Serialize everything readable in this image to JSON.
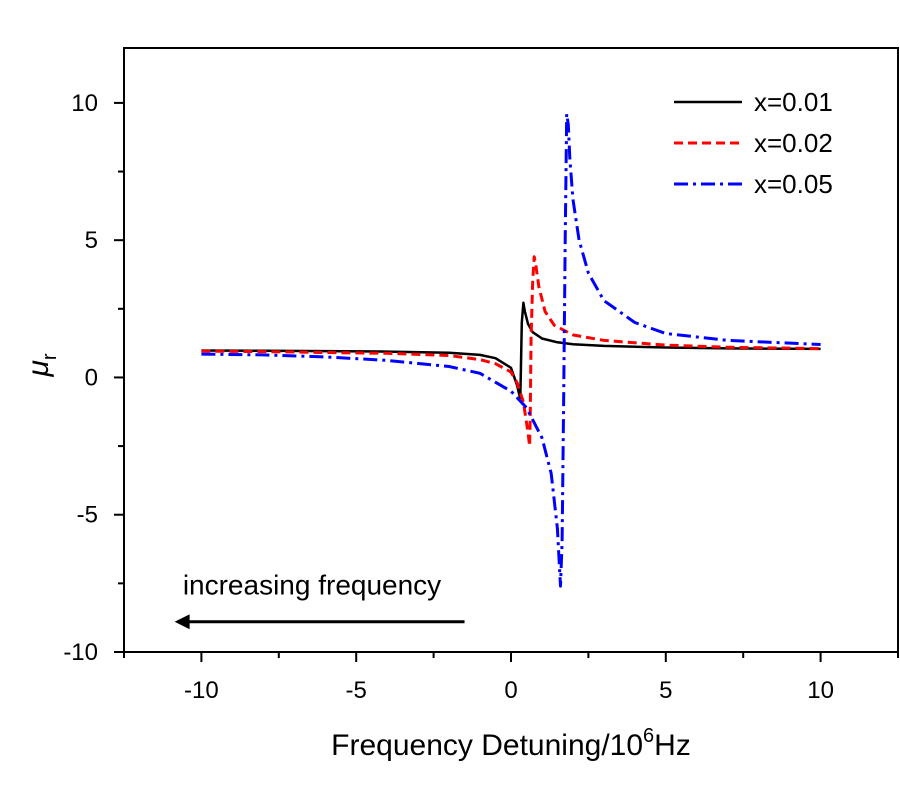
{
  "chart_data": {
    "type": "line",
    "title": "",
    "xlabel": "Frequency Detuning/10",
    "xlabel_sup": "6",
    "xlabel_unit": "Hz",
    "ylabel": "μ",
    "ylabel_sub": "r",
    "xlim": [
      -12.5,
      12.5
    ],
    "ylim": [
      -10,
      12
    ],
    "x_ticks": [
      -10,
      -5,
      0,
      5,
      10
    ],
    "x_tick_labels": [
      "-10",
      "-5",
      "0",
      "5",
      "10"
    ],
    "y_ticks": [
      -10,
      -5,
      0,
      5,
      10
    ],
    "y_tick_labels": [
      "-10",
      "-5",
      "0",
      "5",
      "10"
    ],
    "grid": false,
    "legend_position": "top-right",
    "series": [
      {
        "name": "x=0.01",
        "color": "#000000",
        "style": "solid",
        "x": [
          -10,
          -8,
          -6,
          -4,
          -2,
          -1,
          -0.5,
          0,
          0.2,
          0.28,
          0.3,
          0.32,
          0.35,
          0.4,
          0.45,
          0.55,
          0.7,
          1,
          1.5,
          2,
          3,
          5,
          7,
          10
        ],
        "y": [
          0.98,
          0.97,
          0.96,
          0.94,
          0.9,
          0.82,
          0.7,
          0.35,
          -0.3,
          -0.7,
          -0.75,
          0.3,
          2.0,
          2.72,
          2.4,
          1.95,
          1.65,
          1.42,
          1.28,
          1.21,
          1.15,
          1.09,
          1.06,
          1.04
        ]
      },
      {
        "name": "x=0.02",
        "color": "#ff0000",
        "style": "dashed",
        "x": [
          -10,
          -8,
          -6,
          -4,
          -2,
          -1,
          -0.5,
          0,
          0.2,
          0.4,
          0.55,
          0.6,
          0.62,
          0.65,
          0.7,
          0.75,
          0.8,
          0.9,
          1.1,
          1.4,
          2,
          3,
          5,
          7,
          10
        ],
        "y": [
          0.96,
          0.94,
          0.91,
          0.88,
          0.8,
          0.65,
          0.5,
          0.2,
          -0.2,
          -0.9,
          -2.0,
          -2.5,
          -1.5,
          1.5,
          3.5,
          4.4,
          4.1,
          3.3,
          2.4,
          1.9,
          1.55,
          1.35,
          1.18,
          1.1,
          1.05
        ]
      },
      {
        "name": "x=0.05",
        "color": "#0000ff",
        "style": "dashdot",
        "x": [
          -10,
          -8,
          -6,
          -4,
          -2,
          -1,
          0,
          0.5,
          1,
          1.3,
          1.5,
          1.6,
          1.65,
          1.7,
          1.75,
          1.8,
          1.85,
          1.9,
          2,
          2.2,
          2.5,
          3,
          4,
          5,
          7,
          10
        ],
        "y": [
          0.85,
          0.82,
          0.75,
          0.62,
          0.4,
          0.15,
          -0.5,
          -1.1,
          -2.2,
          -3.5,
          -5.5,
          -7.6,
          -6.0,
          -1.0,
          5.0,
          9.6,
          9.2,
          8.0,
          6.5,
          5.0,
          3.8,
          2.8,
          2.0,
          1.6,
          1.35,
          1.2
        ]
      }
    ],
    "annotation": {
      "text": "increasing frequency",
      "arrow_direction": "left",
      "arrow_from_x": -1.5,
      "arrow_to_x": -10.8,
      "arrow_y": -8.9,
      "text_x": -10.6,
      "text_y": -7.9
    }
  }
}
